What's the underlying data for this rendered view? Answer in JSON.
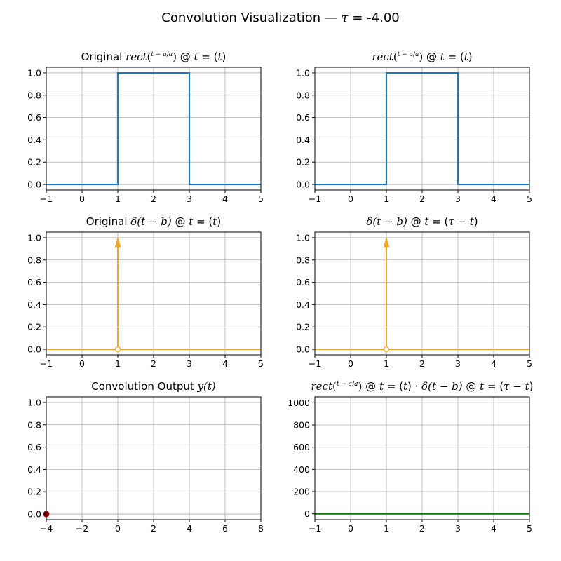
{
  "suptitle": {
    "prefix": "Convolution Visualization — ",
    "tau_symbol": "τ",
    "suffix": " = -4.00"
  },
  "colors": {
    "rect": "#1f77b4",
    "delta": "#f5a623",
    "product": "#008000",
    "output_point": "#8b0000",
    "grid": "#b0b0b0"
  },
  "panels": [
    {
      "title": {
        "pre": "Original ",
        "f1": "rect",
        "f1_num": "t − a",
        "f1_den": "a",
        "f1_tail": ")",
        "at1": " @ ",
        "t1": "t",
        "eq1": " = (",
        "arg1": "t",
        "close1": ")",
        "mid": "",
        "f2": "",
        "f2_tail": "",
        "at2": "",
        "t2": "",
        "eq2": "",
        "arg2": "",
        "close2": ""
      }
    },
    {
      "title": {
        "pre": "",
        "f1": "rect",
        "f1_num": "t − a",
        "f1_den": "a",
        "f1_tail": ")",
        "at1": " @ ",
        "t1": "t",
        "eq1": " = (",
        "arg1": "t",
        "close1": ")",
        "mid": "",
        "f2": "",
        "f2_tail": "",
        "at2": "",
        "t2": "",
        "eq2": "",
        "arg2": "",
        "close2": ""
      }
    },
    {
      "title": {
        "pre": "Original ",
        "f1": "δ(t − b)",
        "f1_num": "",
        "f1_den": "",
        "f1_tail": "",
        "at1": " @ ",
        "t1": "t",
        "eq1": " = (",
        "arg1": "t",
        "close1": ")",
        "mid": "",
        "f2": "",
        "f2_tail": "",
        "at2": "",
        "t2": "",
        "eq2": "",
        "arg2": "",
        "close2": ""
      }
    },
    {
      "title": {
        "pre": "",
        "f1": "δ(t − b)",
        "f1_num": "",
        "f1_den": "",
        "f1_tail": "",
        "at1": " @ ",
        "t1": "t",
        "eq1": " = (",
        "arg1": "τ − t",
        "close1": ")",
        "mid": "",
        "f2": "",
        "f2_tail": "",
        "at2": "",
        "t2": "",
        "eq2": "",
        "arg2": "",
        "close2": ""
      }
    },
    {
      "title": {
        "pre": "Convolution Output ",
        "f1": "y(t)",
        "f1_num": "",
        "f1_den": "",
        "f1_tail": "",
        "at1": "",
        "t1": "",
        "eq1": "",
        "arg1": "",
        "close1": "",
        "mid": "",
        "f2": "",
        "f2_tail": "",
        "at2": "",
        "t2": "",
        "eq2": "",
        "arg2": "",
        "close2": ""
      }
    },
    {
      "title": {
        "pre": "",
        "f1": "rect",
        "f1_num": "t − a",
        "f1_den": "a",
        "f1_tail": ")",
        "at1": " @ ",
        "t1": "t",
        "eq1": " = (",
        "arg1": "t",
        "close1": ")",
        "mid": " · ",
        "f2": "δ(t − b)",
        "f2_tail": "",
        "at2": " @ ",
        "t2": "t",
        "eq2": " = (",
        "arg2": "τ − t",
        "close2": ")"
      }
    }
  ],
  "chart_data": [
    {
      "type": "line",
      "title": "Original rect((t−a)/a) @ t = (t)",
      "xlim": [
        -1,
        5
      ],
      "ylim": [
        -0.05,
        1.05
      ],
      "xticks": [
        -1,
        0,
        1,
        2,
        3,
        4,
        5
      ],
      "yticks": [
        0.0,
        0.2,
        0.4,
        0.6,
        0.8,
        1.0
      ],
      "xtick_labels": [
        "−1",
        "0",
        "1",
        "2",
        "3",
        "4",
        "5"
      ],
      "ytick_labels": [
        "0.0",
        "0.2",
        "0.4",
        "0.6",
        "0.8",
        "1.0"
      ],
      "grid": true,
      "series": [
        {
          "color": "#1f77b4",
          "x": [
            -1,
            1,
            1,
            3,
            3,
            5
          ],
          "y": [
            0,
            0,
            1,
            1,
            0,
            0
          ]
        }
      ]
    },
    {
      "type": "line",
      "title": "rect((t−a)/a) @ t = (t)",
      "xlim": [
        -1,
        5
      ],
      "ylim": [
        -0.05,
        1.05
      ],
      "xticks": [
        -1,
        0,
        1,
        2,
        3,
        4,
        5
      ],
      "yticks": [
        0.0,
        0.2,
        0.4,
        0.6,
        0.8,
        1.0
      ],
      "xtick_labels": [
        "−1",
        "0",
        "1",
        "2",
        "3",
        "4",
        "5"
      ],
      "ytick_labels": [
        "0.0",
        "0.2",
        "0.4",
        "0.6",
        "0.8",
        "1.0"
      ],
      "grid": true,
      "series": [
        {
          "color": "#1f77b4",
          "x": [
            -1,
            1,
            1,
            3,
            3,
            5
          ],
          "y": [
            0,
            0,
            1,
            1,
            0,
            0
          ]
        }
      ]
    },
    {
      "type": "line",
      "title": "Original δ(t−b) @ t = (t)",
      "xlim": [
        -1,
        5
      ],
      "ylim": [
        -0.05,
        1.05
      ],
      "xticks": [
        -1,
        0,
        1,
        2,
        3,
        4,
        5
      ],
      "yticks": [
        0.0,
        0.2,
        0.4,
        0.6,
        0.8,
        1.0
      ],
      "xtick_labels": [
        "−1",
        "0",
        "1",
        "2",
        "3",
        "4",
        "5"
      ],
      "ytick_labels": [
        "0.0",
        "0.2",
        "0.4",
        "0.6",
        "0.8",
        "1.0"
      ],
      "grid": true,
      "series": [
        {
          "color": "#f5a623",
          "x": [
            -1,
            5
          ],
          "y": [
            0,
            0
          ]
        }
      ],
      "impulses": [
        {
          "x": 1,
          "height": 1,
          "color": "#f5a623"
        }
      ],
      "hollow_markers": [
        {
          "x": 1,
          "y": 0,
          "color": "#f5a623"
        }
      ]
    },
    {
      "type": "line",
      "title": "δ(t−b) @ t = (τ−t)",
      "xlim": [
        -1,
        5
      ],
      "ylim": [
        -0.05,
        1.05
      ],
      "xticks": [
        -1,
        0,
        1,
        2,
        3,
        4,
        5
      ],
      "yticks": [
        0.0,
        0.2,
        0.4,
        0.6,
        0.8,
        1.0
      ],
      "xtick_labels": [
        "−1",
        "0",
        "1",
        "2",
        "3",
        "4",
        "5"
      ],
      "ytick_labels": [
        "0.0",
        "0.2",
        "0.4",
        "0.6",
        "0.8",
        "1.0"
      ],
      "grid": true,
      "series": [
        {
          "color": "#f5a623",
          "x": [
            -1,
            5
          ],
          "y": [
            0,
            0
          ]
        }
      ],
      "impulses": [
        {
          "x": 1,
          "height": 1,
          "color": "#f5a623"
        }
      ],
      "hollow_markers": [
        {
          "x": 1,
          "y": 0,
          "color": "#f5a623"
        }
      ]
    },
    {
      "type": "scatter",
      "title": "Convolution Output y(t)",
      "xlim": [
        -4,
        8
      ],
      "ylim": [
        -0.05,
        1.05
      ],
      "xticks": [
        -4,
        -2,
        0,
        2,
        4,
        6,
        8
      ],
      "yticks": [
        0.0,
        0.2,
        0.4,
        0.6,
        0.8,
        1.0
      ],
      "xtick_labels": [
        "−4",
        "−2",
        "0",
        "2",
        "4",
        "6",
        "8"
      ],
      "ytick_labels": [
        "0.0",
        "0.2",
        "0.4",
        "0.6",
        "0.8",
        "1.0"
      ],
      "grid": true,
      "series": [],
      "points": [
        {
          "x": -4,
          "y": 0,
          "color": "#8b0000"
        }
      ]
    },
    {
      "type": "line",
      "title": "rect((t−a)/a) @ t = (t) · δ(t−b) @ t = (τ−t)",
      "xlim": [
        -1,
        5
      ],
      "ylim": [
        -52.5,
        1052.5
      ],
      "xticks": [
        -1,
        0,
        1,
        2,
        3,
        4,
        5
      ],
      "yticks": [
        0,
        200,
        400,
        600,
        800,
        1000
      ],
      "xtick_labels": [
        "−1",
        "0",
        "1",
        "2",
        "3",
        "4",
        "5"
      ],
      "ytick_labels": [
        "0",
        "200",
        "400",
        "600",
        "800",
        "1000"
      ],
      "grid": true,
      "series": [
        {
          "color": "#008000",
          "x": [
            -1,
            5
          ],
          "y": [
            0,
            0
          ]
        }
      ]
    }
  ]
}
